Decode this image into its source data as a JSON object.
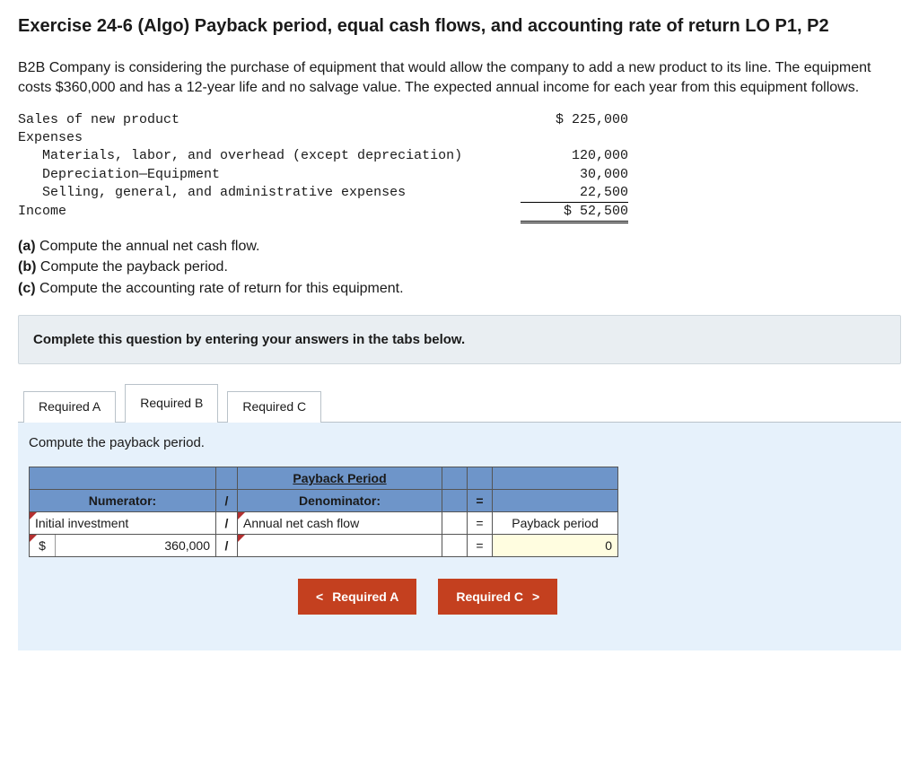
{
  "title": "Exercise 24-6 (Algo) Payback period, equal cash flows, and accounting rate of return LO P1, P2",
  "problem": "B2B Company is considering the purchase of equipment that would allow the company to add a new product to its line. The equipment costs $360,000 and has a 12-year life and no salvage value. The expected annual income for each year from this equipment follows.",
  "income": {
    "sales_label": "Sales of new product",
    "sales_val": "$ 225,000",
    "expenses_label": "Expenses",
    "mat_label": "   Materials, labor, and overhead (except depreciation)",
    "mat_val": "120,000",
    "dep_label": "   Depreciation—Equipment",
    "dep_val": "30,000",
    "sga_label": "   Selling, general, and administrative expenses",
    "sga_val": "22,500",
    "income_label": "Income",
    "income_val": "$ 52,500"
  },
  "parts": {
    "a": "(a) Compute the annual net cash flow.",
    "b": "(b) Compute the payback period.",
    "c": "(c) Compute the accounting rate of return for this equipment."
  },
  "instruction": "Complete this question by entering your answers in the tabs below.",
  "tabs": {
    "a": "Required A",
    "b": "Required B",
    "c": "Required C"
  },
  "subtitle": "Compute the payback period.",
  "ftable": {
    "title": "Payback Period",
    "numerator_hdr": "Numerator:",
    "slash": "/",
    "denominator_hdr": "Denominator:",
    "eq": "=",
    "num_label": "Initial investment",
    "den_label": "Annual net cash flow",
    "res_label": "Payback period",
    "currency": "$",
    "num_value": "360,000",
    "den_value": "",
    "res_value": "0"
  },
  "nav": {
    "prev_chev": "<",
    "prev": "Required A",
    "next": "Required C",
    "next_chev": ">"
  }
}
